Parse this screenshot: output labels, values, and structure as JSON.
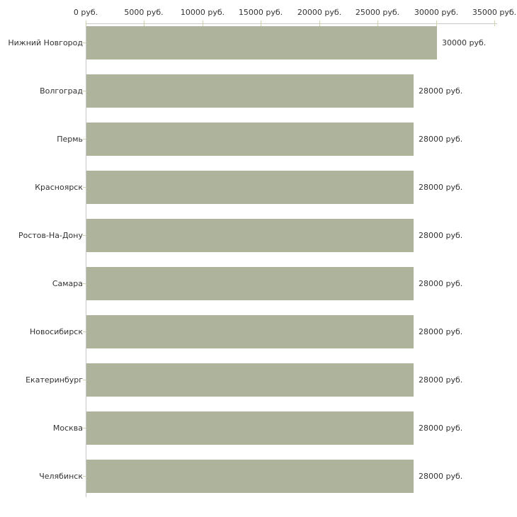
{
  "chart_data": {
    "type": "bar",
    "orientation": "horizontal",
    "title": "",
    "categories": [
      "Нижний Новгород",
      "Волгоград",
      "Пермь",
      "Красноярск",
      "Ростов-На-Дону",
      "Самара",
      "Новосибирск",
      "Екатеринбург",
      "Москва",
      "Челябинск"
    ],
    "values": [
      30000,
      28000,
      28000,
      28000,
      28000,
      28000,
      28000,
      28000,
      28000,
      28000
    ],
    "value_labels": [
      "30000 руб.",
      "28000 руб.",
      "28000 руб.",
      "28000 руб.",
      "28000 руб.",
      "28000 руб.",
      "28000 руб.",
      "28000 руб.",
      "28000 руб.",
      "28000 руб."
    ],
    "unit": "руб.",
    "xlim": [
      0,
      35000
    ],
    "x_ticks": [
      0,
      5000,
      10000,
      15000,
      20000,
      25000,
      30000,
      35000
    ],
    "x_tick_labels": [
      "0 руб.",
      "5000 руб.",
      "10000 руб.",
      "15000 руб.",
      "20000 руб.",
      "25000 руб.",
      "30000 руб.",
      "35000 руб."
    ],
    "xlabel": "",
    "ylabel": "",
    "grid": false,
    "legend": false,
    "colors": {
      "bar": "#adb49b",
      "axis": "#c9c9c7",
      "tick": "#cfd2a6",
      "text": "#333333",
      "background": "#ffffff"
    }
  }
}
